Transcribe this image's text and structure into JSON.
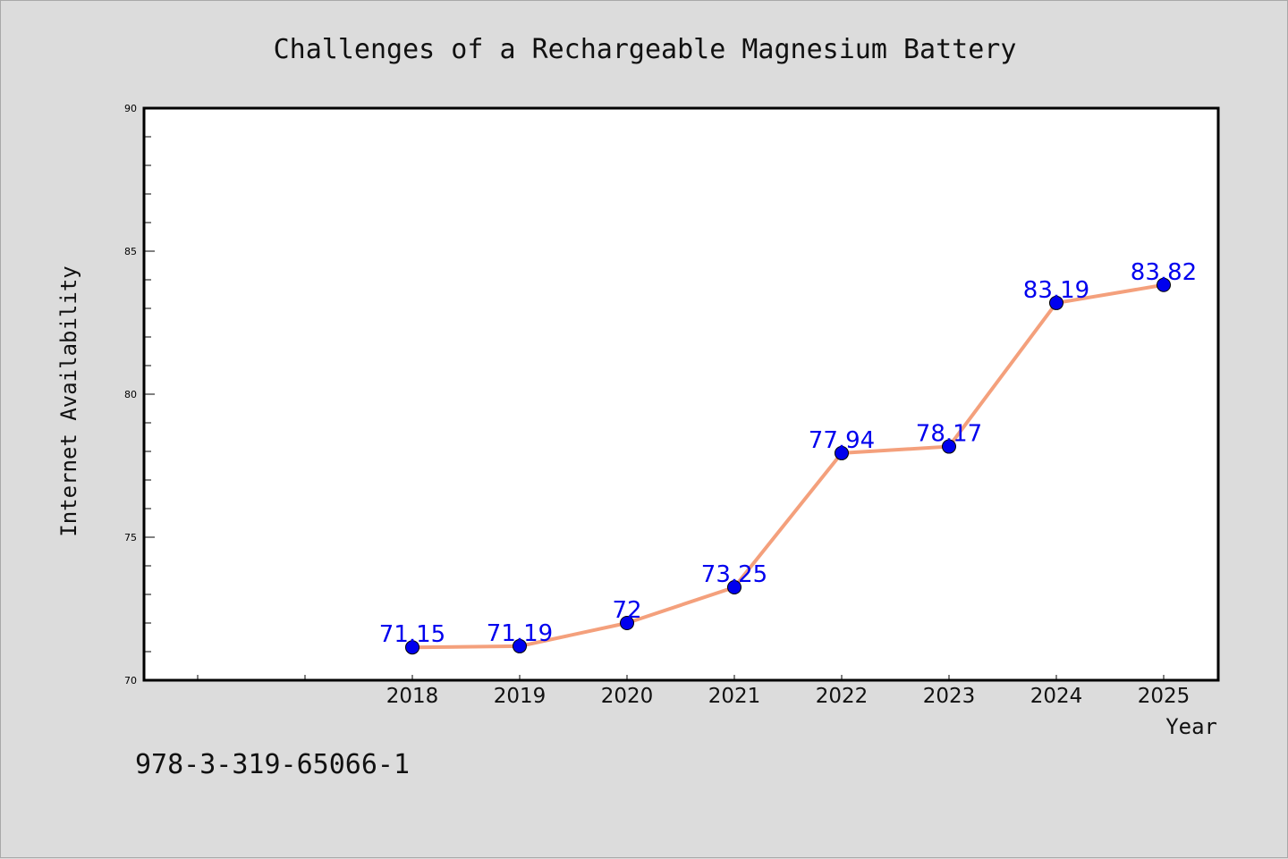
{
  "chart_data": {
    "type": "line",
    "title": "Challenges of a Rechargeable Magnesium Battery",
    "xlabel": "Year",
    "ylabel": "Internet Availability",
    "categories": [
      "2018",
      "2019",
      "2020",
      "2021",
      "2022",
      "2023",
      "2024",
      "2025"
    ],
    "series": [
      {
        "values": [
          71.15,
          71.19,
          72,
          73.25,
          77.94,
          78.17,
          83.19,
          83.82
        ],
        "labels": [
          "71.15",
          "71.19",
          "72",
          "73.25",
          "77.94",
          "78.17",
          "83.19",
          "83.82"
        ],
        "line_color": "#f4a07c",
        "marker_color": "#0000ee",
        "label_color": "#0000ee"
      }
    ],
    "ylim": [
      70,
      90
    ],
    "yticks": [
      "70",
      "75",
      "80",
      "85",
      "90"
    ],
    "grid": false,
    "legend": "none"
  },
  "footer": {
    "isbn": "978-3-319-65066-1"
  }
}
